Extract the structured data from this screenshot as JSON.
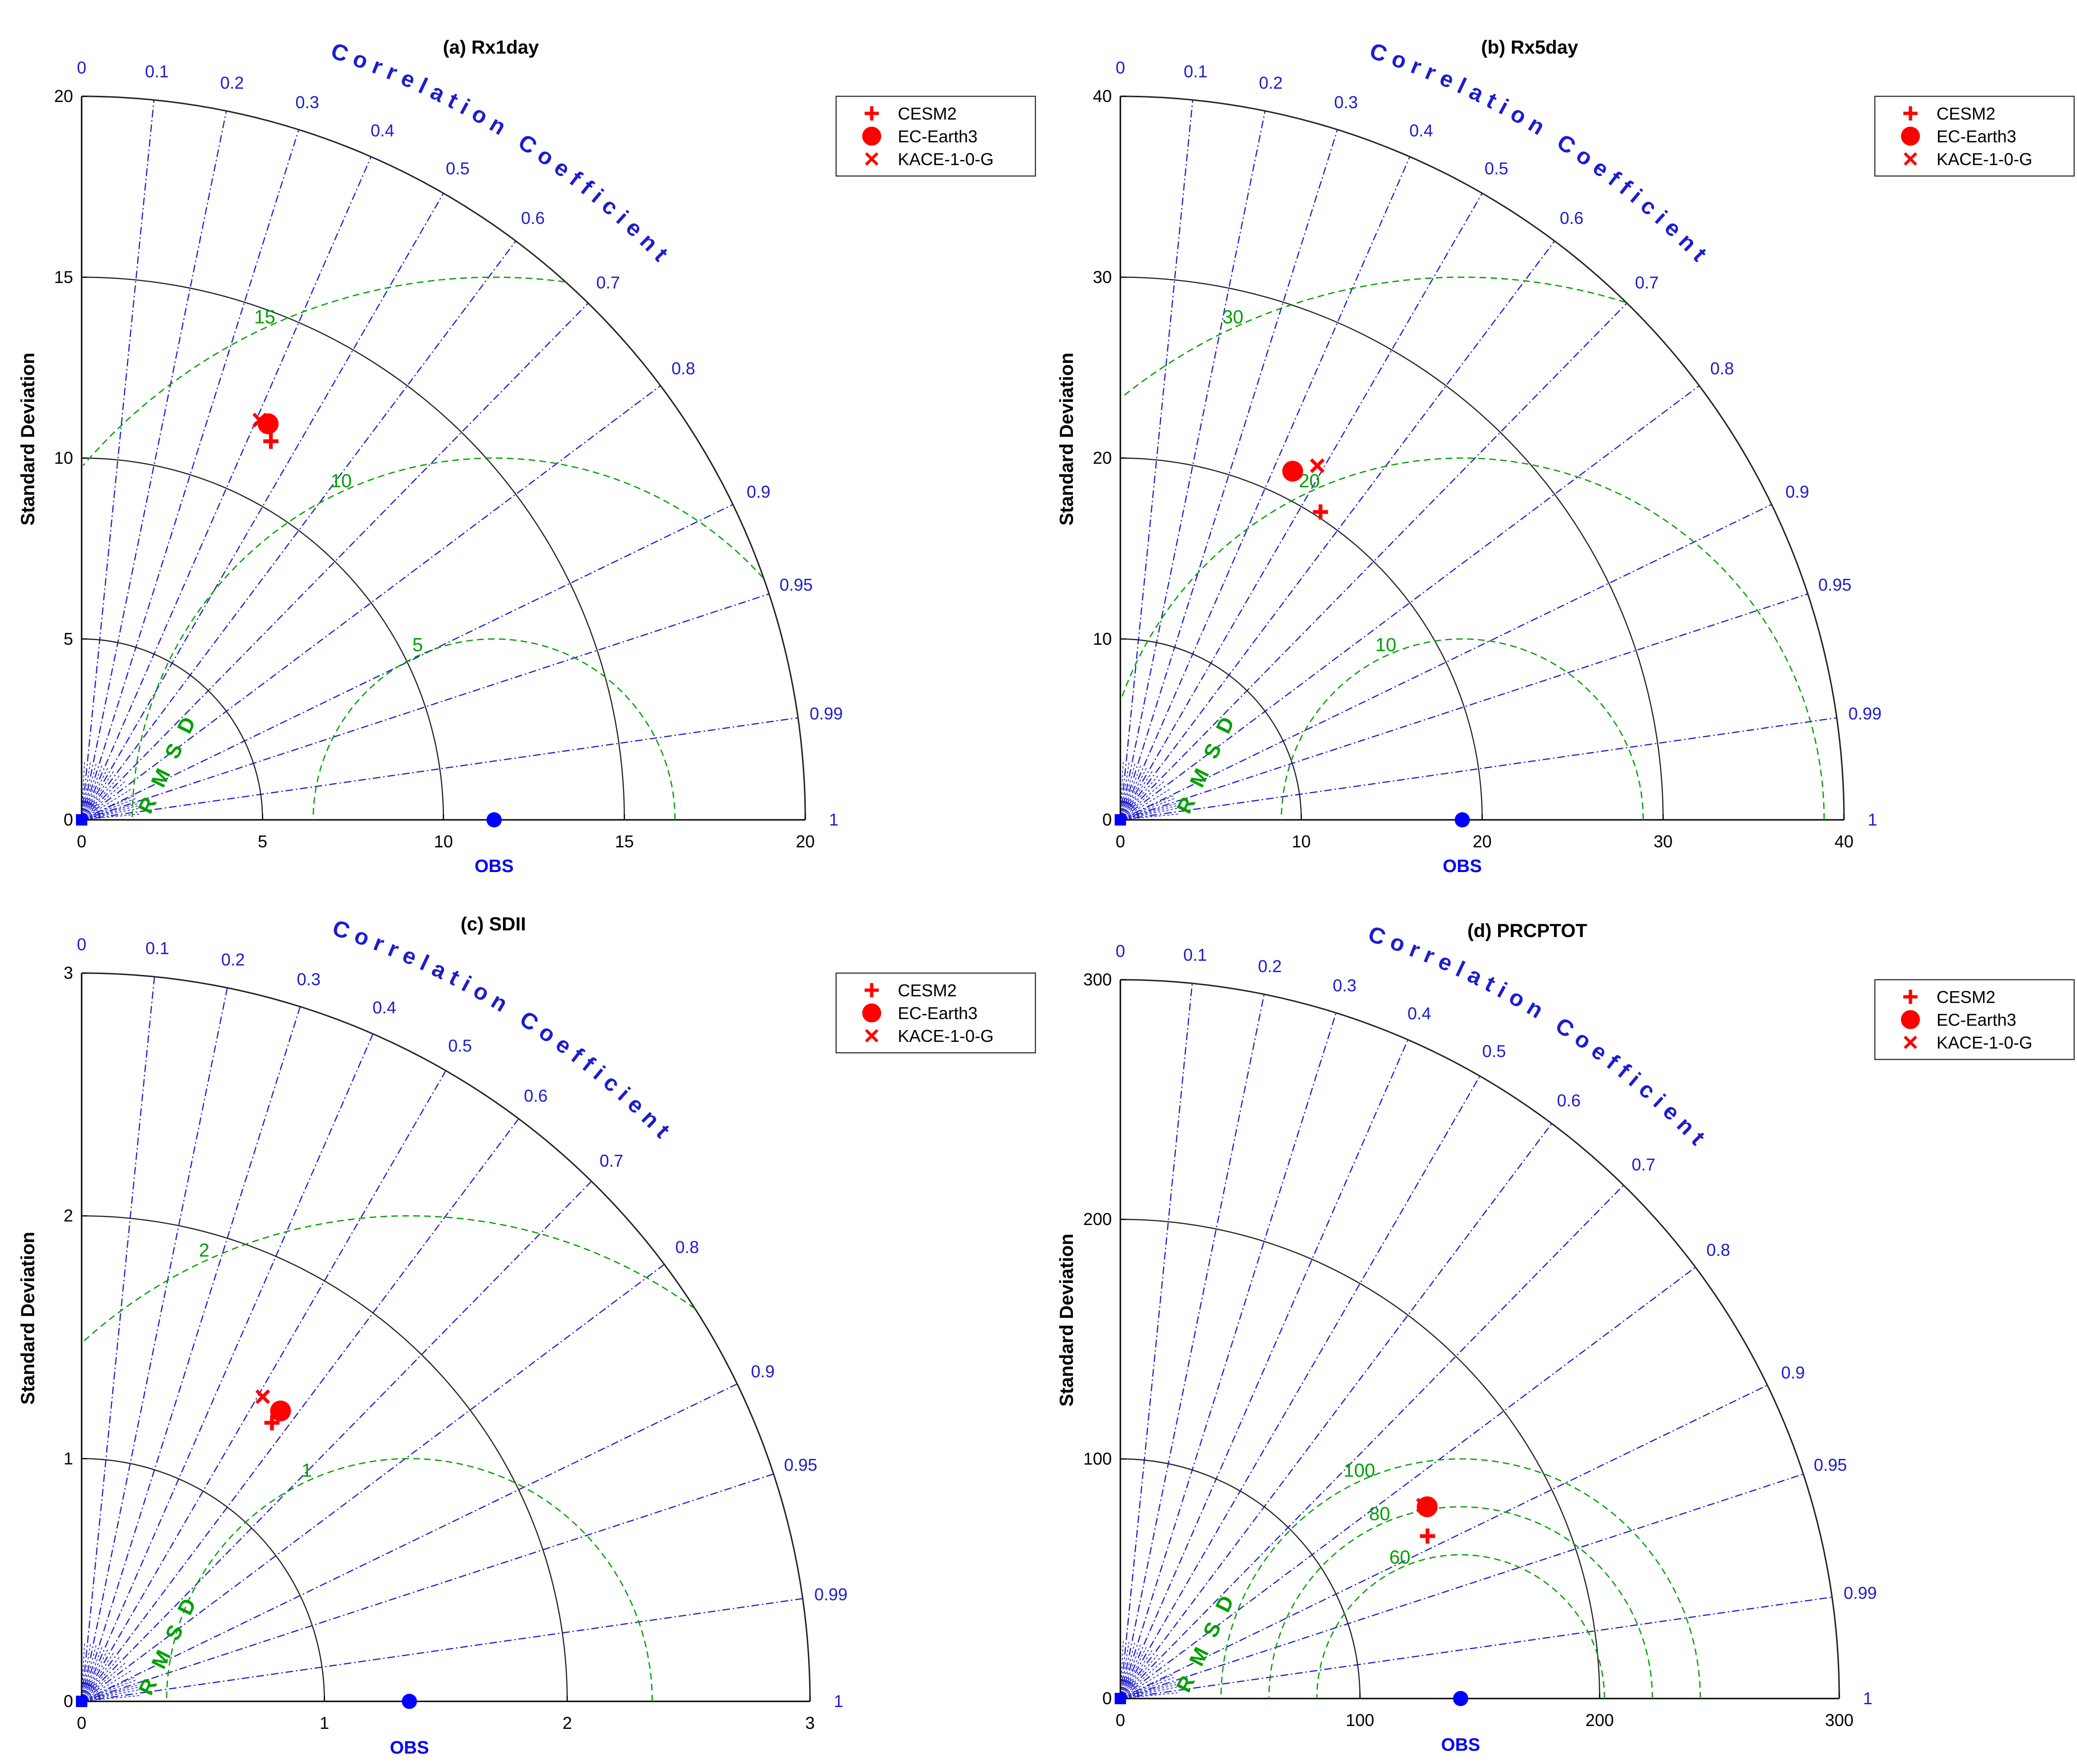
{
  "figure": {
    "corr_axis_label": "Correlation Coefficient",
    "rmsd_label": "RMSD",
    "ylabel": "Standard Deviation",
    "xlabel": "OBS",
    "corr_ticks": [
      0,
      0.1,
      0.2,
      0.3,
      0.4,
      0.5,
      0.6,
      0.7,
      0.8,
      0.9,
      0.95,
      0.99,
      1
    ],
    "corr_tick_labels": [
      "0",
      "0.1",
      "0.2",
      "0.3",
      "0.4",
      "0.5",
      "0.6",
      "0.7",
      "0.8",
      "0.9",
      "0.95",
      "0.99",
      "1"
    ],
    "legend": [
      {
        "name": "CESM2",
        "marker": "plus"
      },
      {
        "name": "EC-Earth3",
        "marker": "circle"
      },
      {
        "name": "KACE-1-0-G",
        "marker": "cross"
      }
    ],
    "colors": {
      "model": "#ff0000",
      "obs": "#0000ff",
      "corr": "#1c1cd0",
      "rmsd": "#00a000",
      "arc": "#222222"
    }
  },
  "chart_data": [
    {
      "type": "taylor",
      "title": "(a) Rx1day",
      "xlabel": "OBS",
      "ylabel": "Standard Deviation",
      "std_max": 20,
      "std_ticks": [
        0,
        5,
        10,
        15,
        20
      ],
      "rmsd_levels": [
        5,
        10,
        15
      ],
      "obs_std": 11.4,
      "points": [
        {
          "name": "CESM2",
          "std": 11.7,
          "corr": 0.447
        },
        {
          "name": "EC-Earth3",
          "std": 12.1,
          "corr": 0.426
        },
        {
          "name": "KACE-1-0-G",
          "std": 12.1,
          "corr": 0.407
        }
      ]
    },
    {
      "type": "taylor",
      "title": "(b) Rx5day",
      "xlabel": "OBS",
      "ylabel": "Standard Deviation",
      "std_max": 40,
      "std_ticks": [
        0,
        10,
        20,
        30,
        40
      ],
      "rmsd_levels": [
        10,
        20,
        30
      ],
      "obs_std": 18.9,
      "points": [
        {
          "name": "CESM2",
          "std": 20.3,
          "corr": 0.545
        },
        {
          "name": "EC-Earth3",
          "std": 21.5,
          "corr": 0.443
        },
        {
          "name": "KACE-1-0-G",
          "std": 22.4,
          "corr": 0.486
        }
      ]
    },
    {
      "type": "taylor",
      "title": "(c) SDII",
      "xlabel": "OBS",
      "ylabel": "Standard Deviation",
      "std_max": 3,
      "std_ticks": [
        0,
        1,
        2,
        3
      ],
      "rmsd_levels": [
        1,
        2
      ],
      "obs_std": 1.35,
      "points": [
        {
          "name": "CESM2",
          "std": 1.39,
          "corr": 0.564
        },
        {
          "name": "EC-Earth3",
          "std": 1.45,
          "corr": 0.565
        },
        {
          "name": "KACE-1-0-G",
          "std": 1.46,
          "corr": 0.511
        }
      ]
    },
    {
      "type": "taylor",
      "title": "(d) PRCPTOT",
      "xlabel": "OBS",
      "ylabel": "Standard Deviation",
      "std_max": 300,
      "std_ticks": [
        0,
        100,
        200,
        300
      ],
      "rmsd_levels": [
        60,
        80,
        100
      ],
      "obs_std": 142,
      "points": [
        {
          "name": "CESM2",
          "std": 145,
          "corr": 0.884
        },
        {
          "name": "EC-Earth3",
          "std": 151,
          "corr": 0.848
        },
        {
          "name": "KACE-1-0-G",
          "std": 150,
          "corr": 0.843
        }
      ]
    }
  ]
}
